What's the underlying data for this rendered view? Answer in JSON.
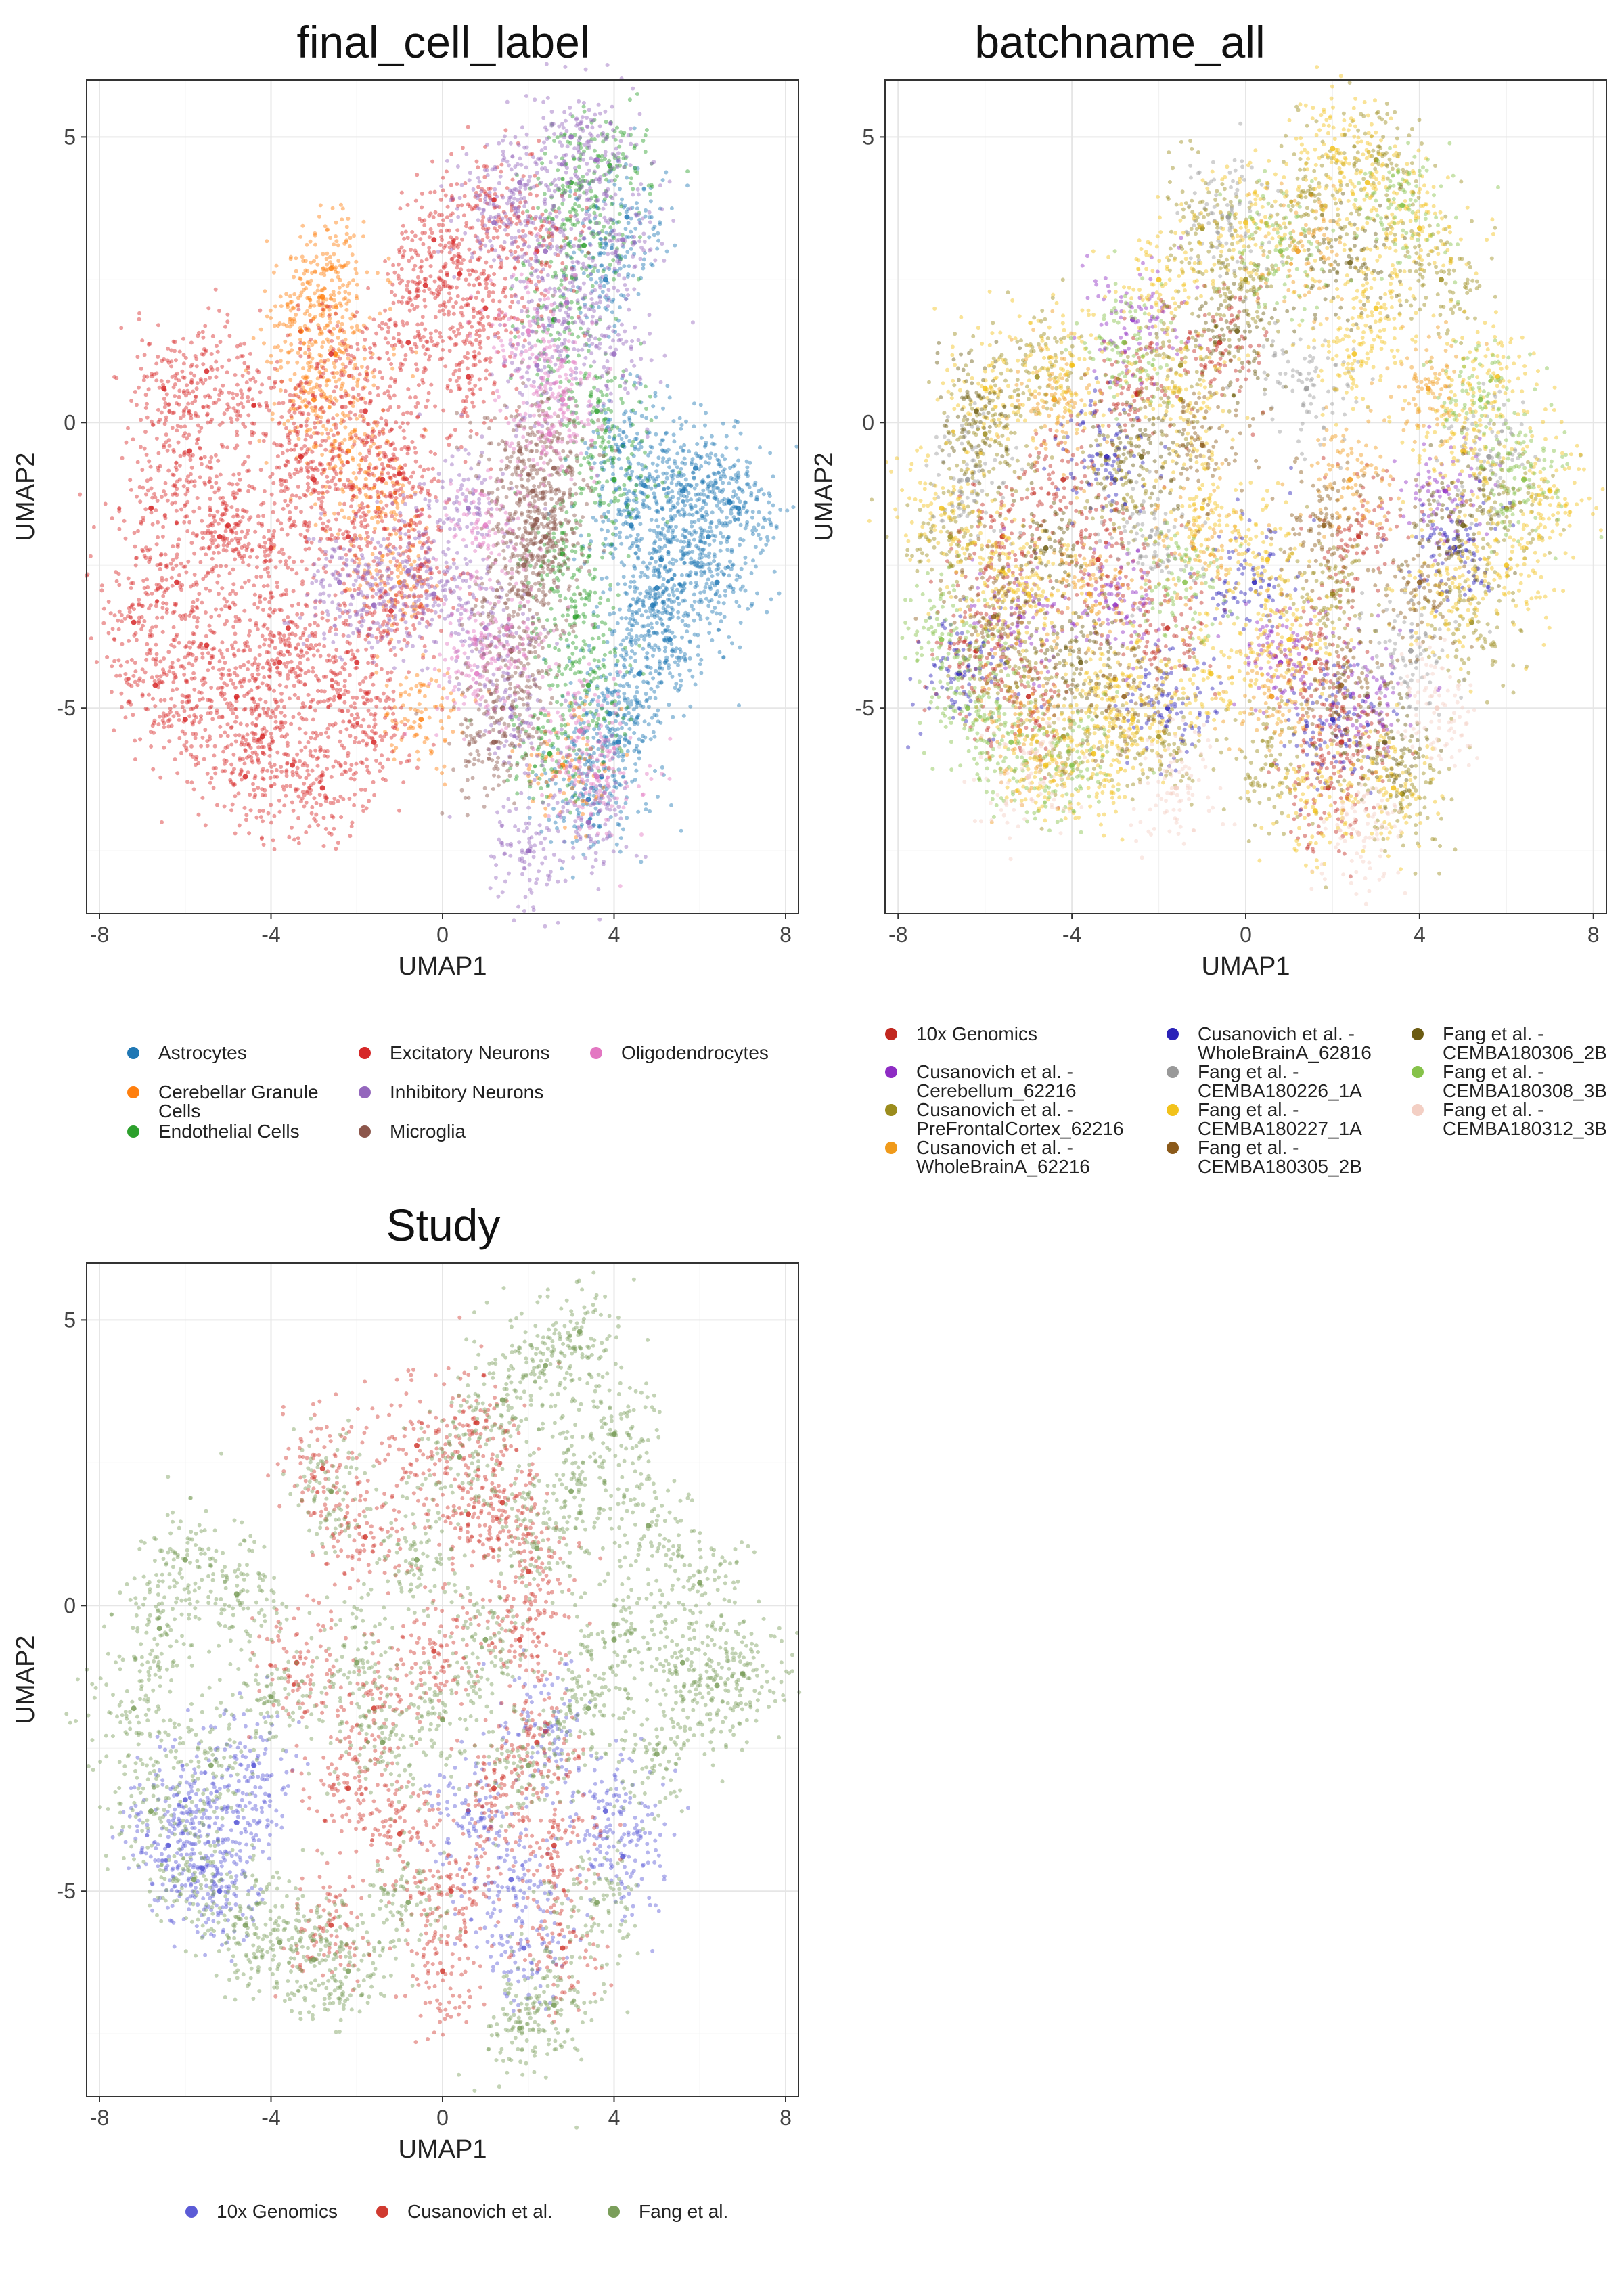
{
  "charts": [
    {
      "title": "final_cell_label",
      "xlabel": "UMAP1",
      "ylabel": "UMAP2",
      "legend": [
        {
          "label": "Astrocytes",
          "color": "#1f77b4"
        },
        {
          "label": "Cerebellar Granule\nCells",
          "color": "#ff7f0e"
        },
        {
          "label": "Endothelial Cells",
          "color": "#2ca02c"
        },
        {
          "label": "Excitatory Neurons",
          "color": "#d62728"
        },
        {
          "label": "Inhibitory Neurons",
          "color": "#9467bd"
        },
        {
          "label": "Microglia",
          "color": "#8c564b"
        },
        {
          "label": "Oligodendrocytes",
          "color": "#e377c2"
        }
      ]
    },
    {
      "title": "batchname_all",
      "xlabel": "UMAP1",
      "ylabel": "UMAP2",
      "legend": [
        {
          "label": "10x Genomics",
          "color": "#c1271f"
        },
        {
          "label": "Cusanovich et al. -\nCerebellum_62216",
          "color": "#8e2cc4"
        },
        {
          "label": "Cusanovich et al. -\nPreFrontalCortex_62216",
          "color": "#9b8c1d"
        },
        {
          "label": "Cusanovich et al. -\nWholeBrainA_62216",
          "color": "#f09a1a"
        },
        {
          "label": "Cusanovich et al. -\nWholeBrainA_62816",
          "color": "#2a22b8"
        },
        {
          "label": "Fang et al. -\nCEMBA180226_1A",
          "color": "#999999"
        },
        {
          "label": "Fang et al. -\nCEMBA180227_1A",
          "color": "#f2c21b"
        },
        {
          "label": "Fang et al. -\nCEMBA180305_2B",
          "color": "#8b5a1a"
        },
        {
          "label": "Fang et al. -\nCEMBA180306_2B",
          "color": "#6b5b12"
        },
        {
          "label": "Fang et al. -\nCEMBA180308_3B",
          "color": "#86c24a"
        },
        {
          "label": "Fang et al. -\nCEMBA180312_3B",
          "color": "#f3cfc4"
        }
      ]
    },
    {
      "title": "Study",
      "xlabel": "UMAP1",
      "ylabel": "UMAP2",
      "legend": [
        {
          "label": "10x Genomics",
          "color": "#5b5bd6"
        },
        {
          "label": "Cusanovich et al.",
          "color": "#d03a30"
        },
        {
          "label": "Fang et al.",
          "color": "#7a9e5a"
        }
      ]
    }
  ],
  "chart_data": [
    {
      "type": "scatter",
      "title": "final_cell_label",
      "xlabel": "UMAP1",
      "ylabel": "UMAP2",
      "xlim": [
        -8.3,
        8.3
      ],
      "ylim": [
        -8.6,
        6.0
      ],
      "xticks": [
        "-8",
        "-4",
        "0",
        "4",
        "8"
      ],
      "yticks": [
        "-5",
        "0",
        "5"
      ],
      "grid": true,
      "legend_position": "bottom",
      "series": [
        {
          "name": "Astrocytes",
          "color": "#1f77b4",
          "x": [
            4.4,
            5.1,
            5.6,
            6.2,
            6.7,
            4.9,
            5.3,
            4.6,
            3.9,
            4.1,
            3.7,
            5.9,
            6.4,
            4.2,
            3.4,
            5.0,
            4.7,
            3.8,
            6.9,
            4.3
          ],
          "y": [
            -1.8,
            -2.4,
            -1.2,
            -2.0,
            -1.4,
            -3.2,
            -3.8,
            -4.4,
            -5.1,
            -5.6,
            -6.2,
            -0.8,
            -2.8,
            -0.4,
            -6.6,
            -2.9,
            -1.1,
            2.5,
            -1.5,
            3.6
          ]
        },
        {
          "name": "Cerebellar Granule\nCells",
          "color": "#ff7f0e",
          "x": [
            -2.8,
            -3.3,
            -2.5,
            -3.0,
            -2.2,
            -1.5,
            -1.0,
            2.8,
            -2.6,
            -0.5
          ],
          "y": [
            2.2,
            1.6,
            1.2,
            0.4,
            -0.5,
            -1.5,
            -2.8,
            -6.0,
            2.7,
            -5.2
          ]
        },
        {
          "name": "Endothelial Cells",
          "color": "#2ca02c",
          "x": [
            3.0,
            3.3,
            2.6,
            3.6,
            4.0,
            2.8,
            3.4,
            2.5,
            3.9,
            3.1
          ],
          "y": [
            4.2,
            3.1,
            1.8,
            0.2,
            -1.0,
            -2.3,
            -4.6,
            -5.8,
            4.5,
            -3.4
          ]
        },
        {
          "name": "Excitatory Neurons",
          "color": "#d62728",
          "x": [
            -6.8,
            -6.2,
            -5.5,
            -4.8,
            -4.2,
            -3.5,
            -2.8,
            -2.0,
            -1.2,
            -0.5,
            -6.5,
            -5.9,
            -5.0,
            -4.0,
            -3.0,
            -1.8,
            -0.8,
            0.4,
            -7.2,
            -6.0,
            -4.6,
            -3.6,
            -2.4,
            -1.6,
            -0.2,
            1.0,
            -5.5,
            -4.4,
            -3.3,
            -2.6,
            -1.0,
            0.6,
            -0.4,
            1.2,
            2.2,
            -6.7,
            -5.2,
            -3.8,
            -2.2,
            -1.4
          ],
          "y": [
            -1.5,
            -2.8,
            -3.9,
            -4.8,
            -5.5,
            -6.0,
            -6.4,
            -4.2,
            -3.3,
            -2.5,
            0.6,
            -0.5,
            -1.8,
            -2.2,
            -1.0,
            0.2,
            1.4,
            2.6,
            -3.5,
            -5.2,
            -6.2,
            -3.6,
            -4.8,
            -5.6,
            3.2,
            2.0,
            0.9,
            0.3,
            -0.6,
            1.2,
            -0.9,
            0.8,
            2.4,
            3.9,
            3.0,
            -4.6,
            -2.0,
            -4.2,
            -2.0,
            -1.0
          ]
        },
        {
          "name": "Inhibitory Neurons",
          "color": "#9467bd",
          "x": [
            1.2,
            1.8,
            2.4,
            3.0,
            3.6,
            4.2,
            -0.8,
            -1.6,
            -2.4,
            1.6,
            2.0,
            0.6,
            3.4,
            2.9,
            4.0,
            1.0,
            -0.2,
            2.2
          ],
          "y": [
            3.5,
            4.2,
            3.0,
            5.0,
            4.6,
            3.2,
            -2.6,
            -3.2,
            -2.8,
            -5.0,
            -7.5,
            -1.5,
            -7.0,
            2.1,
            1.2,
            -3.6,
            -3.0,
            1.0
          ]
        },
        {
          "name": "Microglia",
          "color": "#8c564b",
          "x": [
            1.8,
            2.1,
            2.4,
            2.0,
            1.6,
            1.4,
            2.6,
            1.9,
            2.2,
            1.2
          ],
          "y": [
            -0.5,
            -1.2,
            -2.0,
            -3.0,
            -4.0,
            -5.0,
            -0.8,
            -2.5,
            -1.7,
            -5.6
          ]
        },
        {
          "name": "Oligodendrocytes",
          "color": "#e377c2",
          "x": [
            2.0,
            2.5,
            1.5,
            3.2,
            0.8,
            1.0,
            2.8,
            3.6
          ],
          "y": [
            1.6,
            -0.2,
            -3.6,
            -5.4,
            -4.4,
            -1.8,
            0.4,
            -6.2
          ]
        }
      ]
    },
    {
      "type": "scatter",
      "title": "batchname_all",
      "xlabel": "UMAP1",
      "ylabel": "UMAP2",
      "xlim": [
        -8.3,
        8.3
      ],
      "ylim": [
        -8.6,
        6.0
      ],
      "xticks": [
        "-8",
        "-4",
        "0",
        "4",
        "8"
      ],
      "yticks": [
        "-5",
        "0",
        "5"
      ],
      "grid": true,
      "legend_position": "bottom",
      "series": [
        {
          "name": "10x Genomics",
          "color": "#c1271f",
          "x": [
            -6.2,
            -5.0,
            -3.4,
            -1.8,
            1.6,
            2.2,
            2.6,
            -4.2,
            -0.6,
            1.9,
            -5.6,
            -2.5
          ],
          "y": [
            -4.0,
            -4.8,
            -2.4,
            -3.6,
            -4.2,
            -5.6,
            -2.0,
            -1.0,
            1.4,
            -6.4,
            -2.0,
            0.5
          ]
        },
        {
          "name": "Cusanovich et al. -\nCerebellum_62216",
          "color": "#8e2cc4",
          "x": [
            -2.6,
            -3.0,
            0.8,
            4.6,
            -5.2,
            2.8
          ],
          "y": [
            1.8,
            -3.2,
            -4.2,
            -1.2,
            -3.4,
            -4.8
          ]
        },
        {
          "name": "Cusanovich et al. -\nPreFrontalCortex_62216",
          "color": "#9b8c1d",
          "x": [
            -6.8,
            -5.5,
            -4.2,
            -3.0,
            -1.5,
            0.0,
            1.5,
            3.0,
            4.5,
            6.0,
            -6.0,
            -2.0,
            2.0,
            5.2,
            -4.8,
            0.6,
            3.6,
            -1.0
          ],
          "y": [
            -2.0,
            -4.2,
            -5.5,
            -1.0,
            1.0,
            2.5,
            4.0,
            4.6,
            2.5,
            -1.5,
            -0.2,
            -5.5,
            -3.0,
            -3.5,
            0.8,
            -6.0,
            -6.5,
            3.4
          ]
        },
        {
          "name": "Cusanovich et al. -\nWholeBrainA_62216",
          "color": "#f09a1a",
          "x": [
            -5.2,
            -3.6,
            -1.2,
            0.6,
            2.4,
            4.2,
            -4.4,
            1.2
          ],
          "y": [
            -5.4,
            -3.0,
            -2.2,
            -4.8,
            -1.0,
            0.6,
            0.4,
            3.0
          ]
        },
        {
          "name": "Cusanovich et al. -\nWholeBrainA_62816",
          "color": "#2a22b8",
          "x": [
            -6.6,
            -3.2,
            0.2,
            2.0,
            4.8,
            -1.8
          ],
          "y": [
            -4.4,
            -0.6,
            -2.8,
            -5.2,
            -2.2,
            -5.0
          ]
        },
        {
          "name": "Fang et al. -\nCEMBA180226_1A",
          "color": "#999999",
          "x": [
            -6.4,
            -2.2,
            1.4,
            3.8,
            5.6,
            -0.4
          ],
          "y": [
            -1.0,
            -2.0,
            0.6,
            -4.0,
            -0.6,
            3.6
          ]
        },
        {
          "name": "Fang et al. -\nCEMBA180227_1A",
          "color": "#f2c21b",
          "x": [
            -7.0,
            -6.0,
            -5.0,
            -4.0,
            -3.0,
            -2.0,
            -1.0,
            0.0,
            1.0,
            2.0,
            3.0,
            4.0,
            5.0,
            6.0,
            7.0,
            -5.6,
            -3.5,
            -1.5,
            0.5,
            2.5,
            4.5,
            -2.6,
            1.6,
            3.4,
            5.8,
            -4.6,
            -0.8,
            2.8
          ],
          "y": [
            -1.5,
            0.6,
            -3.0,
            1.0,
            -4.5,
            2.5,
            -1.5,
            3.5,
            -3.8,
            4.8,
            2.0,
            3.4,
            -0.5,
            -2.5,
            -1.2,
            -2.6,
            -5.8,
            0.4,
            -2.4,
            1.2,
            -3.0,
            -5.2,
            -6.8,
            -6.4,
            0.8,
            -6.0,
            -4.4,
            4.2
          ]
        },
        {
          "name": "Fang et al. -\nCEMBA180305_2B",
          "color": "#8b5a1a",
          "x": [
            -5.8,
            -2.8,
            1.8,
            4.0,
            -1.0,
            2.2
          ],
          "y": [
            -3.4,
            -4.8,
            -1.8,
            -2.8,
            -0.4,
            -4.6
          ]
        },
        {
          "name": "Fang et al. -\nCEMBA180306_2B",
          "color": "#6b5b12",
          "x": [
            -6.2,
            -4.6,
            -2.4,
            -0.2,
            2.4,
            3.2,
            5.0,
            -3.8
          ],
          "y": [
            0.2,
            -2.2,
            -0.6,
            1.6,
            2.8,
            -5.6,
            -1.8,
            -4.2
          ]
        },
        {
          "name": "Fang et al. -\nCEMBA180308_3B",
          "color": "#86c24a",
          "x": [
            -7.0,
            -6.4,
            -5.4,
            -2.8,
            0.8,
            3.6,
            6.4,
            -4.0,
            -1.4,
            5.4
          ],
          "y": [
            -3.8,
            -5.0,
            -5.6,
            1.4,
            3.0,
            3.8,
            -1.0,
            -6.0,
            -2.8,
            0.4
          ]
        },
        {
          "name": "Fang et al. -\nCEMBA180312_3B",
          "color": "#f3cfc4",
          "x": [
            -5.0,
            -1.6,
            2.6,
            4.4
          ],
          "y": [
            -6.2,
            -6.4,
            -7.2,
            -5.0
          ]
        }
      ]
    },
    {
      "type": "scatter",
      "title": "Study",
      "xlabel": "UMAP1",
      "ylabel": "UMAP2",
      "xlim": [
        -8.3,
        8.3
      ],
      "ylim": [
        -8.6,
        6.0
      ],
      "xticks": [
        "-8",
        "-4",
        "0",
        "4",
        "8"
      ],
      "yticks": [
        "-5",
        "0",
        "5"
      ],
      "grid": true,
      "legend_position": "bottom",
      "series": [
        {
          "name": "10x Genomics",
          "color": "#5b5bd6",
          "x": [
            -6.4,
            -5.6,
            -4.8,
            -5.2,
            1.6,
            1.9,
            3.8,
            4.2,
            -6.0,
            -4.4,
            2.4,
            0.6
          ],
          "y": [
            -4.2,
            -4.6,
            -3.8,
            -5.0,
            -4.8,
            -6.0,
            -3.6,
            -4.4,
            -3.4,
            -2.8,
            -2.2,
            -3.6
          ]
        },
        {
          "name": "Cusanovich et al.",
          "color": "#d03a30",
          "x": [
            -2.8,
            -1.8,
            -0.6,
            0.6,
            1.8,
            2.2,
            2.6,
            -3.4,
            -2.2,
            -1.0,
            0.2,
            1.2,
            2.0,
            -1.6,
            0.8,
            -0.2,
            1.4,
            2.8,
            -2.6,
            0.0
          ],
          "y": [
            2.4,
            1.2,
            2.8,
            1.6,
            -0.6,
            -2.4,
            -4.2,
            -1.0,
            -3.2,
            -4.0,
            -5.0,
            -3.2,
            0.6,
            -1.8,
            3.2,
            -0.8,
            1.8,
            -6.0,
            -5.6,
            -6.4
          ]
        },
        {
          "name": "Fang et al.",
          "color": "#7a9e5a",
          "x": [
            -7.2,
            -6.6,
            -6.0,
            -5.4,
            -4.6,
            -3.8,
            -3.0,
            -2.2,
            -1.4,
            -0.6,
            0.4,
            1.4,
            2.4,
            3.2,
            4.0,
            4.8,
            5.6,
            6.4,
            7.0,
            -5.8,
            -4.0,
            -2.0,
            0.0,
            2.0,
            4.0,
            6.0,
            3.0,
            2.6,
            1.8,
            3.6,
            -6.8,
            -4.8,
            -2.6,
            -0.8,
            1.0,
            5.0,
            3.4,
            2.2
          ],
          "y": [
            -1.8,
            -0.4,
            0.8,
            -2.8,
            -5.6,
            -5.9,
            -6.2,
            -6.4,
            -2.4,
            0.8,
            2.6,
            3.6,
            4.2,
            4.8,
            3.0,
            1.4,
            -1.0,
            -1.4,
            -1.2,
            -4.8,
            -1.6,
            -1.0,
            -2.0,
            -2.8,
            -0.6,
            0.4,
            2.0,
            -7.0,
            -7.4,
            -5.2,
            -3.6,
            0.2,
            2.0,
            -5.2,
            -0.6,
            -2.6,
            -1.8,
            1.0
          ]
        }
      ]
    }
  ]
}
